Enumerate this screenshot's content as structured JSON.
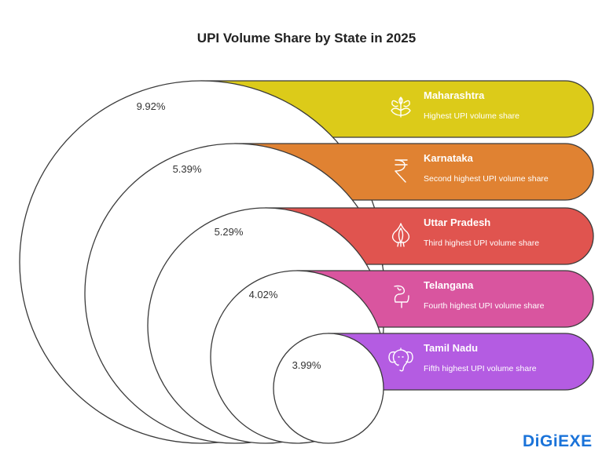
{
  "chart_data": {
    "type": "nested-circles",
    "title": "UPI Volume Share by State in 2025",
    "unit": "%",
    "items": [
      {
        "state": "Maharashtra",
        "value": 9.92,
        "label": "9.92%",
        "description": "Highest UPI volume share",
        "color": "#dccb19",
        "icon": "leaves-icon"
      },
      {
        "state": "Karnataka",
        "value": 5.39,
        "label": "5.39%",
        "description": "Second highest UPI volume share",
        "color": "#e08232",
        "icon": "rupee-icon"
      },
      {
        "state": "Uttar Pradesh",
        "value": 5.29,
        "label": "5.29%",
        "description": "Third highest UPI volume share",
        "color": "#e0544f",
        "icon": "onion-icon"
      },
      {
        "state": "Telangana",
        "value": 4.02,
        "label": "4.02%",
        "description": "Fourth highest UPI volume share",
        "color": "#d9559f",
        "icon": "telangana-icon"
      },
      {
        "state": "Tamil Nadu",
        "value": 3.99,
        "label": "3.99%",
        "description": "Fifth highest UPI volume share",
        "color": "#b45ce2",
        "icon": "elephant-icon"
      }
    ]
  },
  "brand": {
    "logo": "DiGiEXE",
    "color": "#1a73d9"
  }
}
